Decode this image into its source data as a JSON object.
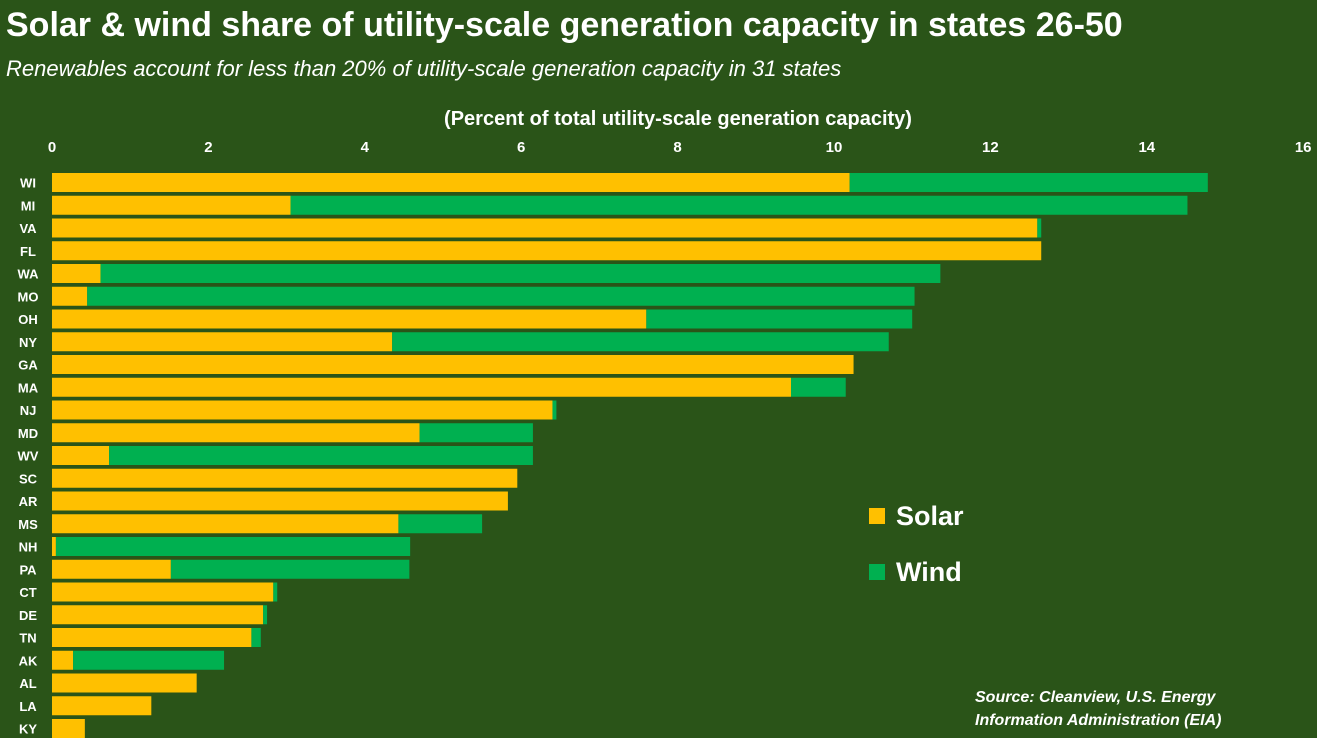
{
  "chart_data": {
    "type": "bar",
    "stacked": true,
    "orientation": "horizontal",
    "title": "Solar & wind share of utility-scale generation capacity in states 26-50",
    "subtitle": "Renewables account for less than 20% of utility-scale generation capacity in 31 states",
    "xlabel": "(Percent of total utility-scale generation capacity)",
    "ylabel": "",
    "xlim": [
      0,
      16
    ],
    "x_ticks": [
      "0",
      "2",
      "4",
      "6",
      "8",
      "10",
      "12",
      "14",
      "16"
    ],
    "grid": false,
    "legend_position": "right",
    "categories": [
      "WI",
      "MI",
      "VA",
      "FL",
      "WA",
      "MO",
      "OH",
      "NY",
      "GA",
      "MA",
      "NJ",
      "MD",
      "WV",
      "SC",
      "AR",
      "MS",
      "NH",
      "PA",
      "CT",
      "DE",
      "TN",
      "AK",
      "AL",
      "LA",
      "KY"
    ],
    "series": [
      {
        "name": "Solar",
        "color": "#ffc000",
        "values": [
          10.2,
          3.05,
          12.6,
          12.65,
          0.62,
          0.45,
          7.6,
          4.35,
          10.25,
          9.45,
          6.4,
          4.7,
          0.73,
          5.95,
          5.83,
          4.43,
          0.05,
          1.52,
          2.83,
          2.7,
          2.55,
          0.27,
          1.85,
          1.27,
          0.42
        ]
      },
      {
        "name": "Wind",
        "color": "#00b050",
        "values": [
          4.58,
          11.47,
          0.05,
          0.0,
          10.74,
          10.58,
          3.4,
          6.35,
          0.0,
          0.7,
          0.05,
          1.45,
          5.42,
          0.0,
          0.0,
          1.07,
          4.53,
          3.05,
          0.05,
          0.05,
          0.12,
          1.93,
          0.0,
          0.0,
          0.0
        ]
      }
    ]
  },
  "source_lines": [
    "Source: Cleanview, U.S. Energy",
    "Information Administration (EIA)"
  ]
}
